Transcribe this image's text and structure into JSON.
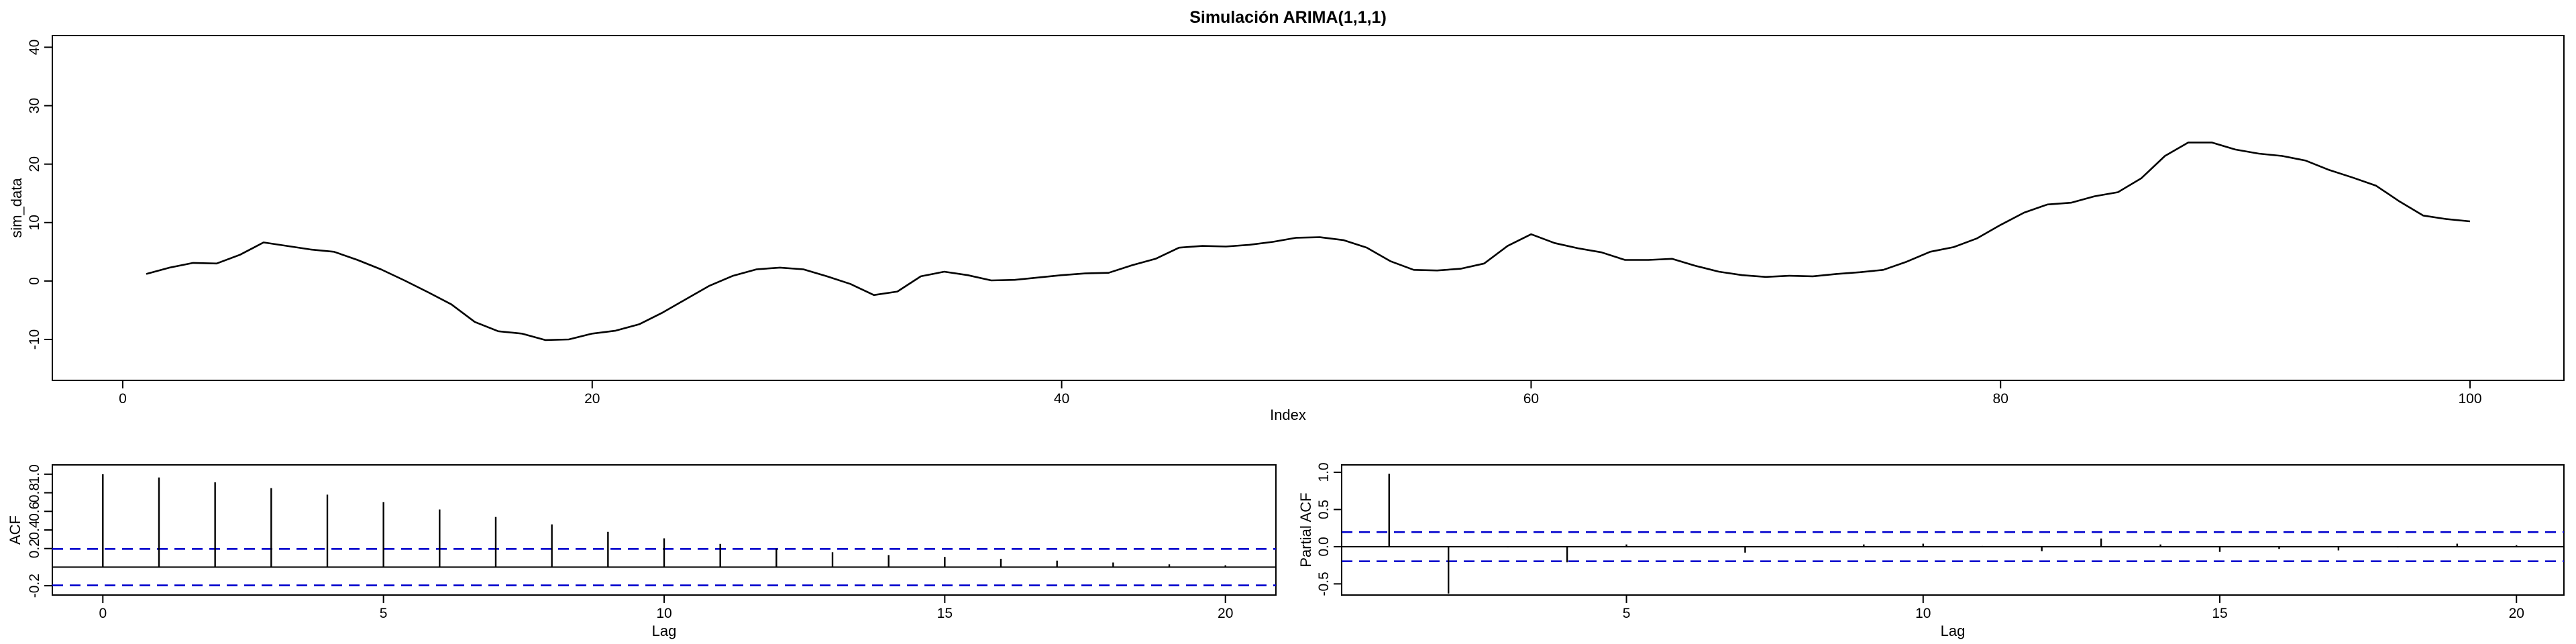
{
  "colors": {
    "ci_line": "#0000CD",
    "series": "#000000"
  },
  "chart_data": [
    {
      "type": "line",
      "title": "Simulación ARIMA(1,1,1)",
      "xlabel": "Index",
      "ylabel": "sim_data",
      "xlim": [
        -3,
        104
      ],
      "ylim": [
        -17,
        42
      ],
      "xticks": [
        0,
        20,
        40,
        60,
        80,
        100
      ],
      "yticks": [
        -10,
        0,
        10,
        20,
        30,
        40
      ],
      "grid": false,
      "x": [
        1,
        2,
        3,
        4,
        5,
        6,
        7,
        8,
        9,
        10,
        11,
        12,
        13,
        14,
        15,
        16,
        17,
        18,
        19,
        20,
        21,
        22,
        23,
        24,
        25,
        26,
        27,
        28,
        29,
        30,
        31,
        32,
        33,
        34,
        35,
        36,
        37,
        38,
        39,
        40,
        41,
        42,
        43,
        44,
        45,
        46,
        47,
        48,
        49,
        50,
        51,
        52,
        53,
        54,
        55,
        56,
        57,
        58,
        59,
        60,
        61,
        62,
        63,
        64,
        65,
        66,
        67,
        68,
        69,
        70,
        71,
        72,
        73,
        74,
        75,
        76,
        77,
        78,
        79,
        80,
        81,
        82,
        83,
        84,
        85,
        86,
        87,
        88,
        89,
        90,
        91,
        92,
        93,
        94,
        95,
        96,
        97,
        98,
        99,
        100
      ],
      "series": [
        {
          "values": [
            1.2,
            2.3,
            3.1,
            3.0,
            4.5,
            6.6,
            6.0,
            5.4,
            5.0,
            3.6,
            2.0,
            0.1,
            -1.9,
            -4.0,
            -7.0,
            -8.6,
            -9.0,
            -10.1,
            -10.0,
            -9.0,
            -8.5,
            -7.4,
            -5.4,
            -3.1,
            -0.8,
            0.9,
            2.0,
            2.3,
            2.0,
            0.8,
            -0.5,
            -2.4,
            -1.8,
            0.8,
            1.6,
            1.0,
            0.1,
            0.2,
            0.6,
            1.0,
            1.3,
            1.4,
            2.7,
            3.8,
            5.7,
            6.0,
            5.9,
            6.2,
            6.7,
            7.4,
            7.5,
            7.0,
            5.7,
            3.4,
            1.9,
            1.8,
            2.1,
            3.0,
            6.0,
            8.0,
            6.5,
            5.6,
            4.9,
            3.6,
            3.6,
            3.8,
            2.6,
            1.6,
            1.0,
            0.7,
            0.9,
            0.8,
            1.2,
            1.5,
            1.9,
            3.3,
            5.0,
            5.8,
            7.3,
            9.6,
            11.7,
            13.1,
            13.4,
            14.5,
            15.2,
            17.6,
            21.4,
            23.7,
            23.7,
            22.5,
            21.8,
            21.4,
            20.6,
            19.0,
            17.7,
            16.3,
            13.6,
            11.2,
            10.6,
            10.2
          ]
        }
      ]
    },
    {
      "type": "bar",
      "xlabel": "Lag",
      "ylabel": "ACF",
      "xlim": [
        -0.9,
        20.9
      ],
      "ylim": [
        -0.3,
        1.1
      ],
      "xticks": [
        0,
        5,
        10,
        15,
        20
      ],
      "yticks": [
        -0.2,
        0.2,
        0.6,
        1.0
      ],
      "ytick_labels": [
        "-0.2",
        "0.2",
        "0.6",
        "1.0"
      ],
      "ytick_labels_alt": [
        "0.4",
        "0.8"
      ],
      "yticks_alt": [
        0.4,
        0.8
      ],
      "ci": 0.196,
      "x": [
        0,
        1,
        2,
        3,
        4,
        5,
        6,
        7,
        8,
        9,
        10,
        11,
        12,
        13,
        14,
        15,
        16,
        17,
        18,
        19,
        20
      ],
      "values": [
        1.0,
        0.965,
        0.912,
        0.85,
        0.78,
        0.7,
        0.62,
        0.54,
        0.46,
        0.38,
        0.31,
        0.25,
        0.2,
        0.16,
        0.13,
        0.11,
        0.09,
        0.07,
        0.05,
        0.03,
        0.02
      ]
    },
    {
      "type": "bar",
      "xlabel": "Lag",
      "ylabel": "Partial ACF",
      "xlim": [
        0.2,
        20.8
      ],
      "ylim": [
        -0.65,
        1.1
      ],
      "xticks": [
        5,
        10,
        15,
        20
      ],
      "yticks": [
        -0.5,
        0.0,
        0.5,
        1.0
      ],
      "ytick_labels": [
        "-0.5",
        "0.0",
        "0.5",
        "1.0"
      ],
      "ci": 0.196,
      "x": [
        1,
        2,
        3,
        4,
        5,
        6,
        7,
        8,
        9,
        10,
        11,
        12,
        13,
        14,
        15,
        16,
        17,
        18,
        19,
        20
      ],
      "values": [
        0.98,
        -0.63,
        -0.01,
        -0.21,
        0.03,
        0.0,
        -0.08,
        0.0,
        0.03,
        0.04,
        0.01,
        -0.06,
        0.11,
        0.03,
        -0.07,
        -0.03,
        -0.05,
        -0.01,
        0.04,
        0.02
      ]
    }
  ]
}
